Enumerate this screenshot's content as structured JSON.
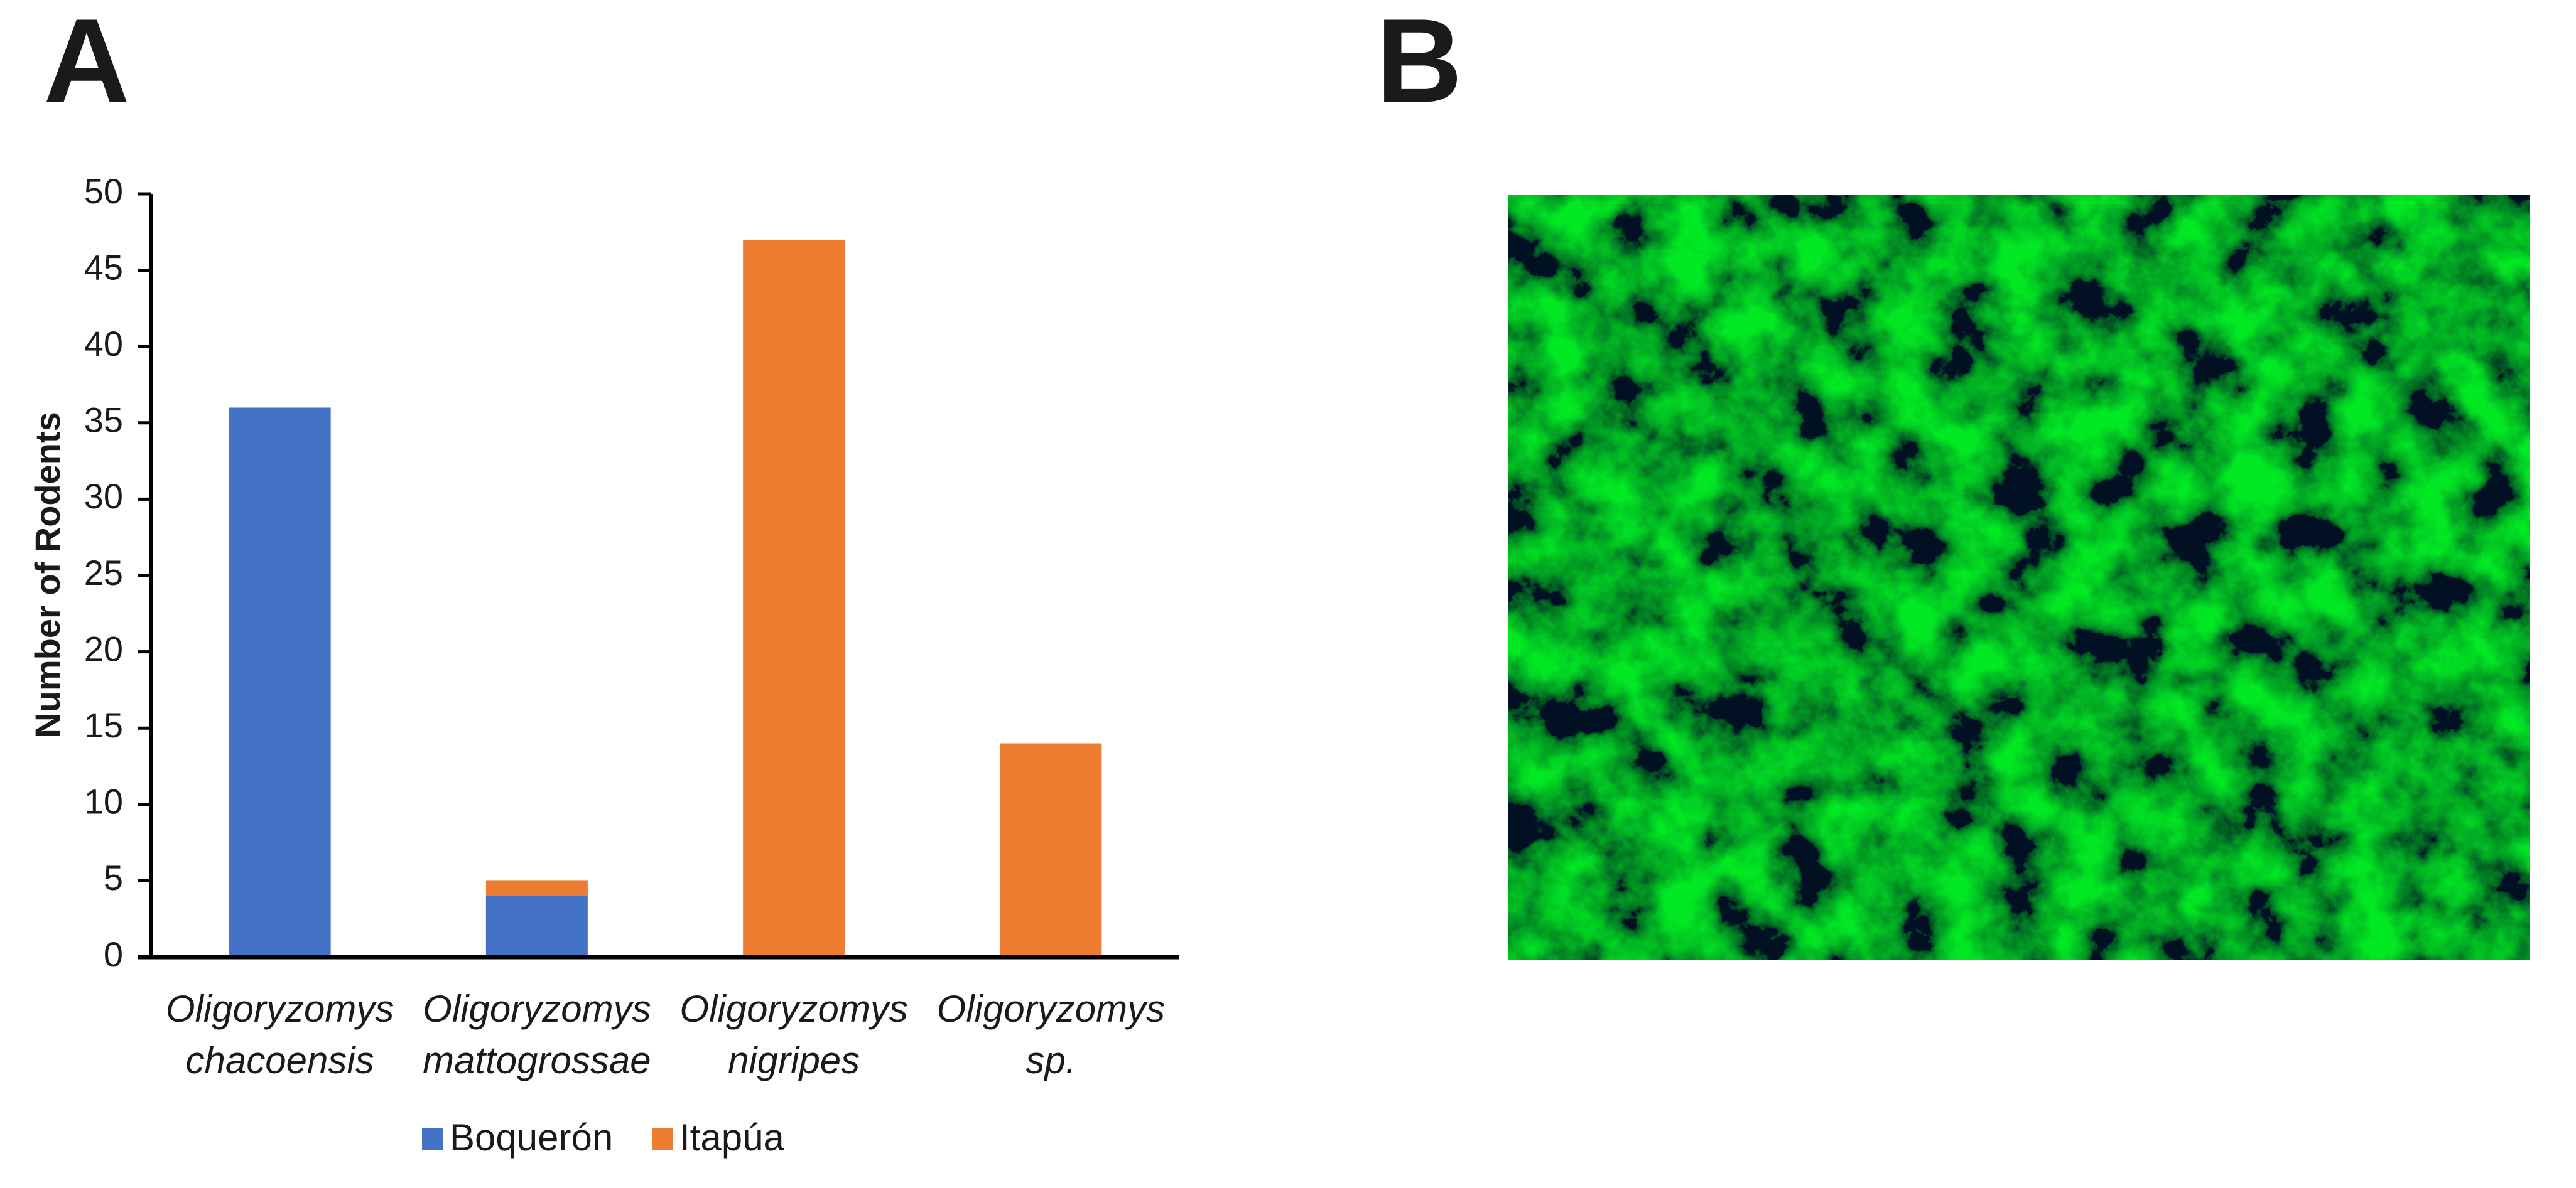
{
  "panel_labels": {
    "a": "A",
    "b": "B"
  },
  "chart_data": {
    "type": "stacked_bar",
    "y_label": "Number of Rodents",
    "categories": [
      [
        "Oligoryzomys",
        "chacoensis"
      ],
      [
        "Oligoryzomys",
        "mattogrossae"
      ],
      [
        "Oligoryzomys",
        "nigripes"
      ],
      [
        "Oligoryzomys",
        "sp."
      ]
    ],
    "series": [
      {
        "name": "Boquerón",
        "color": "#4472c4",
        "values": [
          36,
          4,
          0,
          0
        ]
      },
      {
        "name": "Itapúa",
        "color": "#ed7d31",
        "values": [
          0,
          1,
          47,
          14
        ]
      }
    ],
    "ylim": [
      0,
      50
    ],
    "yticks": [
      0,
      5,
      10,
      15,
      20,
      25,
      30,
      35,
      40,
      45,
      50
    ],
    "legend": "bottom"
  }
}
